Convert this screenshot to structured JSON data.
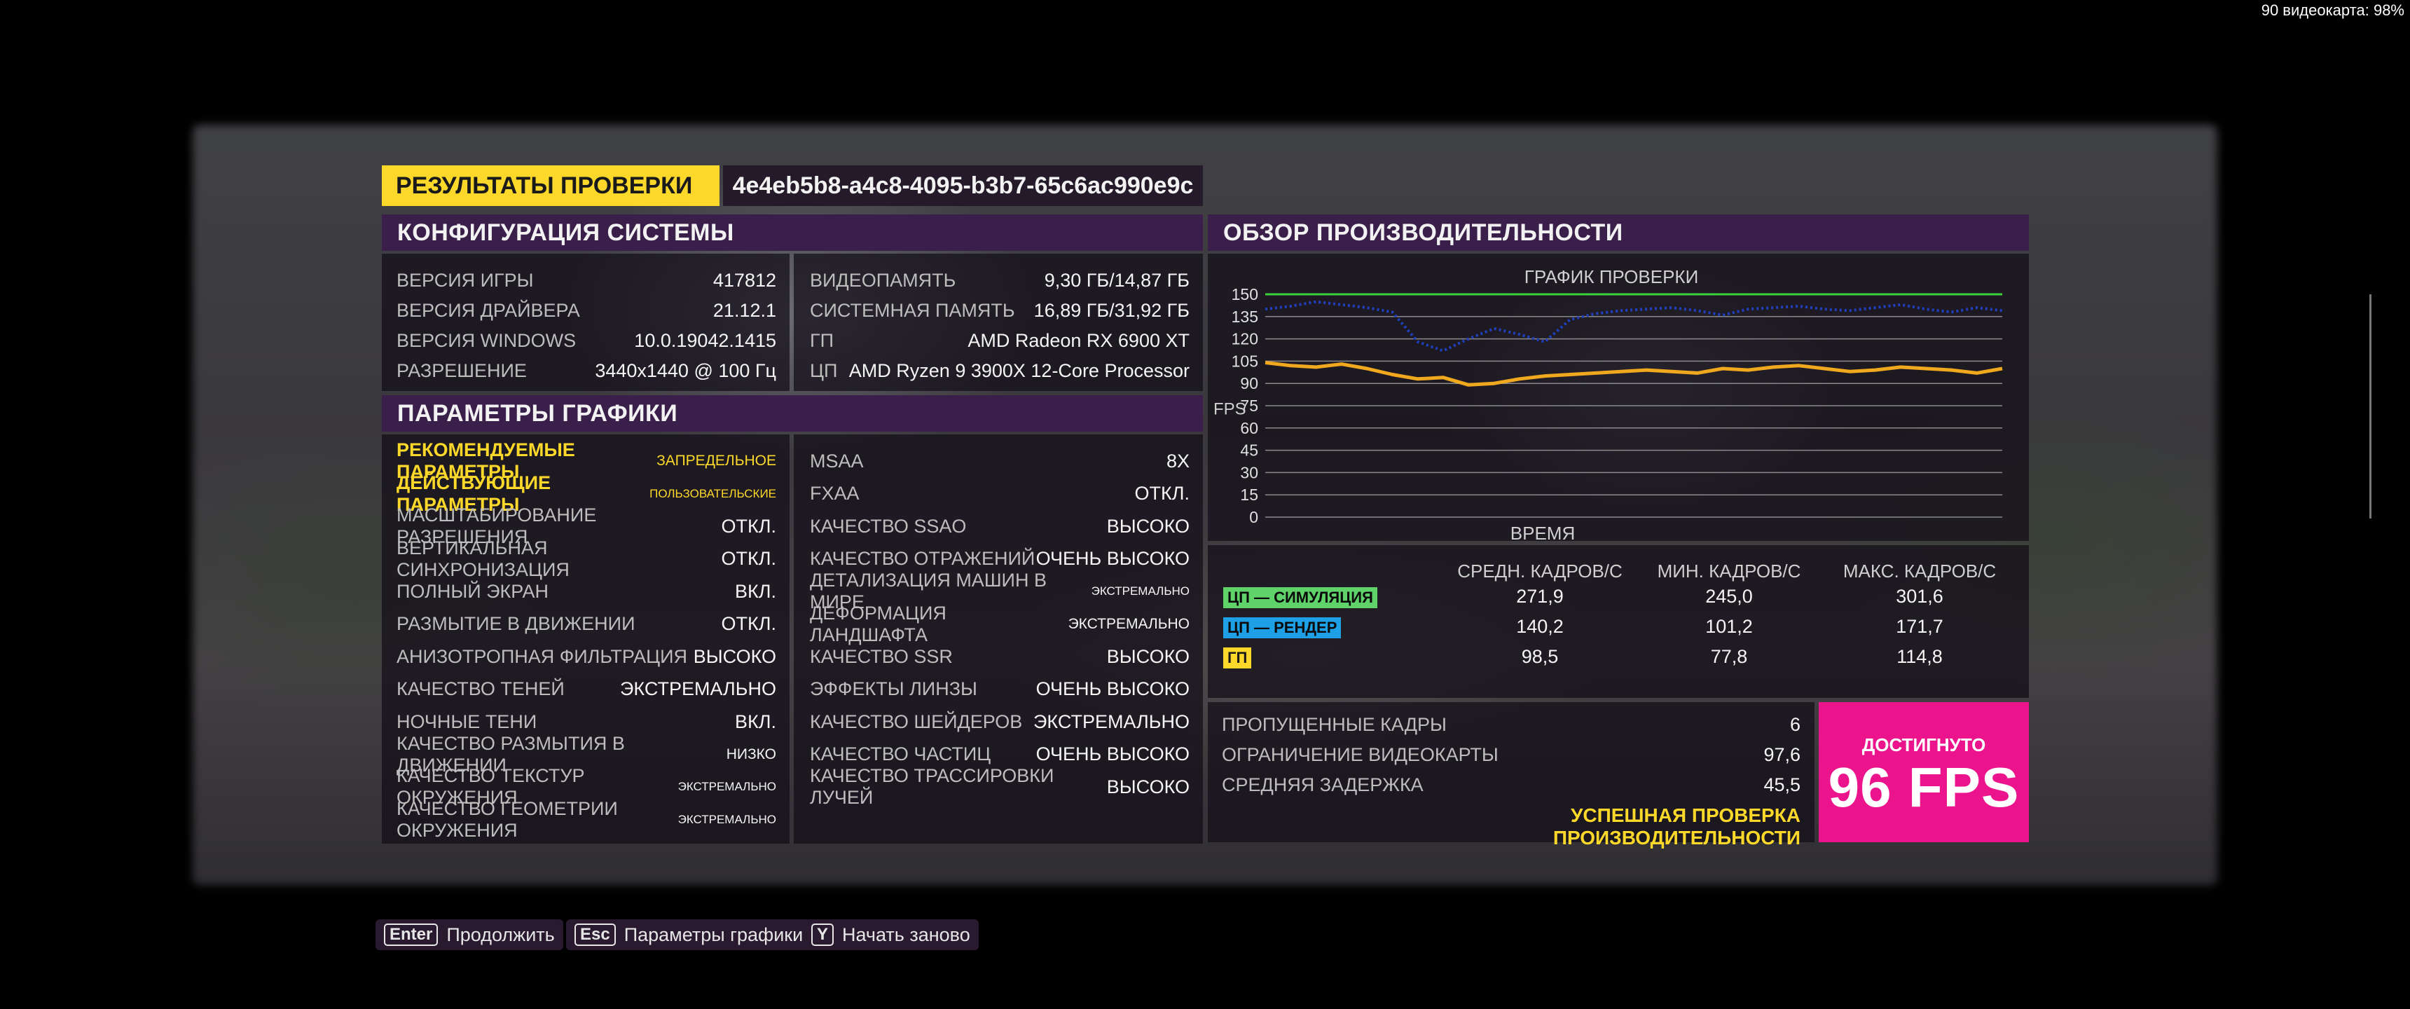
{
  "overlay": {
    "gpu_text": "90 видеокарта: 98%"
  },
  "header": {
    "title": "РЕЗУЛЬТАТЫ ПРОВЕРКИ",
    "test_id": "4e4eb5b8-a4c8-4095-b3b7-65c6ac990e9c"
  },
  "system_config": {
    "title": "КОНФИГУРАЦИЯ СИСТЕМЫ",
    "left": [
      {
        "k": "ВЕРСИЯ ИГРЫ",
        "v": "417812"
      },
      {
        "k": "ВЕРСИЯ ДРАЙВЕРА",
        "v": "21.12.1"
      },
      {
        "k": "ВЕРСИЯ WINDOWS",
        "v": "10.0.19042.1415"
      },
      {
        "k": "РАЗРЕШЕНИЕ",
        "v": "3440x1440 @ 100 Гц"
      }
    ],
    "right": [
      {
        "k": "ВИДЕОПАМЯТЬ",
        "v": "9,30 ГБ/14,87 ГБ"
      },
      {
        "k": "СИСТЕМНАЯ ПАМЯТЬ",
        "v": "16,89 ГБ/31,92 ГБ"
      },
      {
        "k": "ГП",
        "v": "AMD Radeon RX 6900 XT"
      },
      {
        "k": "ЦП",
        "v": "AMD Ryzen 9 3900X 12-Core Processor"
      }
    ]
  },
  "graphics": {
    "title": "ПАРАМЕТРЫ ГРАФИКИ",
    "left": [
      {
        "k": "РЕКОМЕНДУЕМЫЕ ПАРАМЕТРЫ",
        "v": "ЗАПРЕДЕЛЬНОЕ"
      },
      {
        "k": "ДЕЙСТВУЮЩИЕ ПАРАМЕТРЫ",
        "v": "ПОЛЬЗОВАТЕЛЬСКИЕ"
      },
      {
        "k": "МАСШТАБИРОВАНИЕ РАЗРЕШЕНИЯ",
        "v": "ОТКЛ."
      },
      {
        "k": "ВЕРТИКАЛЬНАЯ СИНХРОНИЗАЦИЯ",
        "v": "ОТКЛ."
      },
      {
        "k": "ПОЛНЫЙ ЭКРАН",
        "v": "ВКЛ."
      },
      {
        "k": "РАЗМЫТИЕ В ДВИЖЕНИИ",
        "v": "ОТКЛ."
      },
      {
        "k": "АНИЗОТРОПНАЯ ФИЛЬТРАЦИЯ",
        "v": "ВЫСОКО"
      },
      {
        "k": "КАЧЕСТВО ТЕНЕЙ",
        "v": "ЭКСТРЕМАЛЬНО"
      },
      {
        "k": "НОЧНЫЕ ТЕНИ",
        "v": "ВКЛ."
      },
      {
        "k": "КАЧЕСТВО РАЗМЫТИЯ В ДВИЖЕНИИ",
        "v": "НИЗКО"
      },
      {
        "k": "КАЧЕСТВО ТЕКСТУР ОКРУЖЕНИЯ",
        "v": "ЭКСТРЕМАЛЬНО"
      },
      {
        "k": "КАЧЕСТВО ГЕОМЕТРИИ ОКРУЖЕНИЯ",
        "v": "ЭКСТРЕМАЛЬНО"
      }
    ],
    "right": [
      {
        "k": "MSAA",
        "v": "8X"
      },
      {
        "k": "FXAA",
        "v": "ОТКЛ."
      },
      {
        "k": "КАЧЕСТВО SSAO",
        "v": "ВЫСОКО"
      },
      {
        "k": "КАЧЕСТВО ОТРАЖЕНИЙ",
        "v": "ОЧЕНЬ ВЫСОКО"
      },
      {
        "k": "ДЕТАЛИЗАЦИЯ МАШИН В МИРЕ",
        "v": "ЭКСТРЕМАЛЬНО"
      },
      {
        "k": "ДЕФОРМАЦИЯ ЛАНДШАФТА",
        "v": "ЭКСТРЕМАЛЬНО"
      },
      {
        "k": "КАЧЕСТВО SSR",
        "v": "ВЫСОКО"
      },
      {
        "k": "ЭФФЕКТЫ ЛИНЗЫ",
        "v": "ОЧЕНЬ ВЫСОКО"
      },
      {
        "k": "КАЧЕСТВО ШЕЙДЕРОВ",
        "v": "ЭКСТРЕМАЛЬНО"
      },
      {
        "k": "КАЧЕСТВО ЧАСТИЦ",
        "v": "ОЧЕНЬ ВЫСОКО"
      },
      {
        "k": "КАЧЕСТВО ТРАССИРОВКИ ЛУЧЕЙ",
        "v": "ВЫСОКО"
      }
    ]
  },
  "performance": {
    "title": "ОБЗОР ПРОИЗВОДИТЕЛЬНОСТИ",
    "stat_headers": [
      "СРЕДН. КАДРОВ/С",
      "МИН. КАДРОВ/С",
      "МАКС. КАДРОВ/С"
    ],
    "stats": [
      {
        "label": "ЦП — СИМУЛЯЦИЯ",
        "color": "#5fd36a",
        "avg": "271,9",
        "min": "245,0",
        "max": "301,6"
      },
      {
        "label": "ЦП — РЕНДЕР",
        "color": "#1ea0e6",
        "avg": "140,2",
        "min": "101,2",
        "max": "171,7"
      },
      {
        "label": "ГП",
        "color": "#fcd82a",
        "avg": "98,5",
        "min": "77,8",
        "max": "114,8"
      }
    ],
    "extra": [
      {
        "k": "ПРОПУЩЕННЫЕ КАДРЫ",
        "v": "6"
      },
      {
        "k": "ОГРАНИЧЕНИЕ ВИДЕОКАРТЫ",
        "v": "97,6"
      },
      {
        "k": "СРЕДНЯЯ ЗАДЕРЖКА",
        "v": "45,5"
      }
    ],
    "success": "УСПЕШНАЯ ПРОВЕРКА ПРОИЗВОДИТЕЛЬНОСТИ",
    "achieved_label": "ДОСТИГНУТО",
    "achieved_value": "96 FPS"
  },
  "chart_data": {
    "type": "line",
    "title": "ГРАФИК ПРОВЕРКИ",
    "xlabel": "ВРЕМЯ",
    "ylabel": "FPS",
    "ylim": [
      0,
      150
    ],
    "yticks": [
      0,
      15,
      30,
      45,
      60,
      75,
      90,
      105,
      120,
      135,
      150
    ],
    "grid": true,
    "series": [
      {
        "name": "ЦП — СИМУЛЯЦИЯ",
        "color": "#3cd23c",
        "values": [
          150,
          150,
          150,
          150,
          150,
          150,
          150,
          150,
          150,
          150,
          150,
          150,
          150,
          150,
          150,
          150,
          150,
          150,
          150,
          150,
          150,
          150,
          150,
          150,
          150,
          150,
          150,
          150,
          150,
          150
        ]
      },
      {
        "name": "ЦП — РЕНДЕР",
        "color": "#2040c0",
        "values": [
          140,
          142,
          145,
          143,
          141,
          138,
          118,
          112,
          120,
          127,
          123,
          118,
          133,
          137,
          139,
          140,
          141,
          139,
          136,
          140,
          141,
          142,
          140,
          139,
          141,
          143,
          140,
          138,
          141,
          139
        ]
      },
      {
        "name": "ГП",
        "color": "#f0a81e",
        "values": [
          104,
          102,
          101,
          103,
          100,
          96,
          93,
          94,
          89,
          90,
          93,
          95,
          96,
          97,
          98,
          99,
          98,
          97,
          100,
          99,
          101,
          102,
          100,
          98,
          99,
          101,
          100,
          99,
          97,
          100
        ]
      }
    ]
  },
  "hints": [
    {
      "key": "Enter",
      "label": "Продолжить"
    },
    {
      "key": "Esc",
      "label": "Параметры графики"
    },
    {
      "key": "Y",
      "label": "Начать заново"
    }
  ]
}
